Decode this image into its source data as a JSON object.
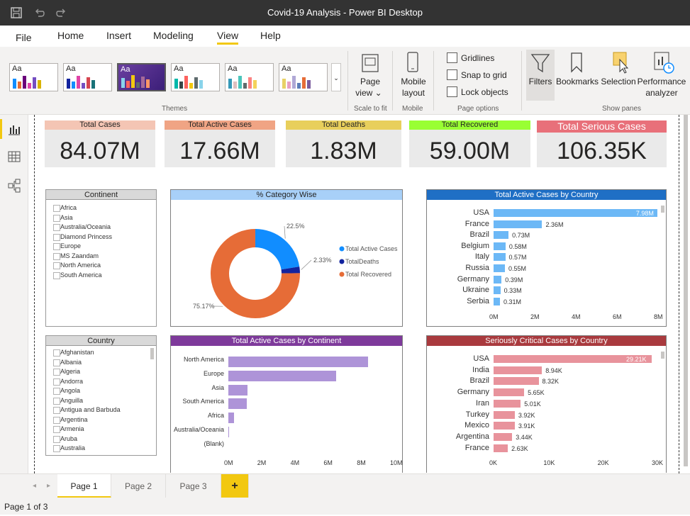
{
  "window": {
    "title": "Covid-19 Analysis - Power BI Desktop"
  },
  "menu": {
    "file": "File",
    "home": "Home",
    "insert": "Insert",
    "modeling": "Modeling",
    "view": "View",
    "help": "Help"
  },
  "ribbon": {
    "theme_aa": "Aa",
    "themes_label": "Themes",
    "page_view_1": "Page",
    "page_view_2": "view",
    "scale_to_fit": "Scale to fit",
    "mobile_layout_1": "Mobile",
    "mobile_layout_2": "layout",
    "mobile_label": "Mobile",
    "gridlines": "Gridlines",
    "snap_to_grid": "Snap to grid",
    "lock_objects": "Lock objects",
    "page_options": "Page options",
    "filters": "Filters",
    "bookmarks": "Bookmarks",
    "selection": "Selection",
    "performance_1": "Performance",
    "performance_2": "analyzer",
    "show_panes": "Show panes"
  },
  "kpis": [
    {
      "label": "Total Cases",
      "value": "84.07M",
      "color": "#f4c5b4"
    },
    {
      "label": "Total Active Cases",
      "value": "17.66M",
      "color": "#f0a484"
    },
    {
      "label": "Total Deaths",
      "value": "1.83M",
      "color": "#e8cf5c"
    },
    {
      "label": "Total Recovered",
      "value": "59.00M",
      "color": "#99ff33"
    },
    {
      "label": "Total Serious Cases",
      "value": "106.35K",
      "color": "#e8707a"
    }
  ],
  "continent_slicer": {
    "title": "Continent",
    "items": [
      "Africa",
      "Asia",
      "Australia/Oceania",
      "Diamond Princess",
      "Europe",
      "MS Zaandam",
      "North America",
      "South America"
    ]
  },
  "country_slicer": {
    "title": "Country",
    "items": [
      "Afghanistan",
      "Albania",
      "Algeria",
      "Andorra",
      "Angola",
      "Anguilla",
      "Antigua and Barbuda",
      "Argentina",
      "Armenia",
      "Aruba",
      "Australia"
    ]
  },
  "donut": {
    "title": "% Category Wise",
    "slices": [
      {
        "name": "Total Active Cases",
        "pct": 22.5,
        "label": "22.5%",
        "color": "#118dff"
      },
      {
        "name": "TotalDeaths",
        "pct": 2.33,
        "label": "2.33%",
        "color": "#12239e"
      },
      {
        "name": "Total Recovered",
        "pct": 75.17,
        "label": "75.17%",
        "color": "#e66c37"
      }
    ]
  },
  "chart_data": [
    {
      "type": "bar",
      "title": "Total Active Cases by Country",
      "categories": [
        "USA",
        "France",
        "Brazil",
        "Belgium",
        "Italy",
        "Russia",
        "Germany",
        "Ukraine",
        "Serbia"
      ],
      "values": [
        7.98,
        2.36,
        0.73,
        0.58,
        0.57,
        0.55,
        0.39,
        0.33,
        0.31
      ],
      "data_labels": [
        "7.98M",
        "2.36M",
        "0.73M",
        "0.58M",
        "0.57M",
        "0.55M",
        "0.39M",
        "0.33M",
        "0.31M"
      ],
      "xticks": [
        "0M",
        "2M",
        "4M",
        "6M",
        "8M"
      ],
      "xlim": [
        0,
        8
      ],
      "color": "#6cb8f6",
      "header_color": "#1f6fc5"
    },
    {
      "type": "bar",
      "title": "Total Active Cases by Continent",
      "categories": [
        "North America",
        "Europe",
        "Asia",
        "South America",
        "Africa",
        "Australia/Oceania",
        "(Blank)"
      ],
      "values": [
        8.4,
        6.5,
        1.15,
        1.1,
        0.35,
        0.02,
        0
      ],
      "xticks": [
        "0M",
        "2M",
        "4M",
        "6M",
        "8M",
        "10M"
      ],
      "xlim": [
        0,
        10
      ],
      "color": "#ae94d8",
      "header_color": "#7e3a9b"
    },
    {
      "type": "bar",
      "title": "Seriously Critical Cases by Country",
      "categories": [
        "USA",
        "India",
        "Brazil",
        "Germany",
        "Iran",
        "Turkey",
        "Mexico",
        "Argentina",
        "France"
      ],
      "values": [
        29.21,
        8.94,
        8.32,
        5.65,
        5.01,
        3.92,
        3.91,
        3.44,
        2.63
      ],
      "data_labels": [
        "29.21K",
        "8.94K",
        "8.32K",
        "5.65K",
        "5.01K",
        "3.92K",
        "3.91K",
        "3.44K",
        "2.63K"
      ],
      "xticks": [
        "0K",
        "10K",
        "20K",
        "30K"
      ],
      "xlim": [
        0,
        30
      ],
      "color": "#e8939c",
      "header_color": "#a93a3e"
    }
  ],
  "tabs": [
    "Page 1",
    "Page 2",
    "Page 3"
  ],
  "add_tab": "+",
  "status": "Page 1 of 3"
}
